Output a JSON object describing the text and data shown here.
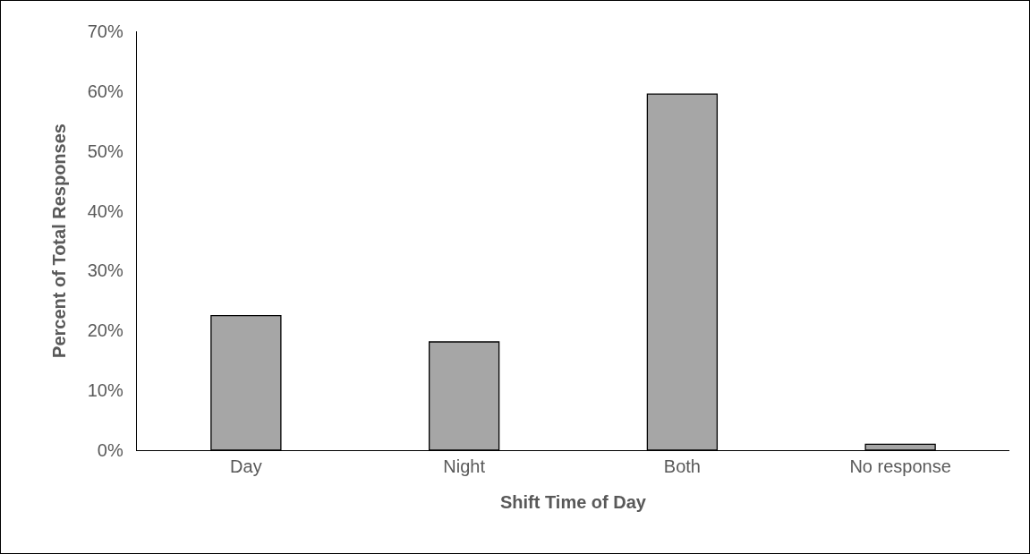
{
  "chart_data": {
    "type": "bar",
    "xlabel": "Shift Time of Day",
    "ylabel": "Percent of Total Responses",
    "categories": [
      "Day",
      "Night",
      "Both",
      "No response"
    ],
    "values": [
      0.225,
      0.181,
      0.595,
      0.01
    ],
    "color": "#a6a6a6",
    "ylim": [
      0,
      0.7
    ],
    "yticks": [
      {
        "value": 0,
        "label": "0%"
      },
      {
        "value": 0.1,
        "label": "10%"
      },
      {
        "value": 0.2,
        "label": "20%"
      },
      {
        "value": 0.3,
        "label": "30%"
      },
      {
        "value": 0.4,
        "label": "40%"
      },
      {
        "value": 0.5,
        "label": "50%"
      },
      {
        "value": 0.6,
        "label": "60%"
      },
      {
        "value": 0.7,
        "label": "70%"
      }
    ],
    "grid": false
  }
}
